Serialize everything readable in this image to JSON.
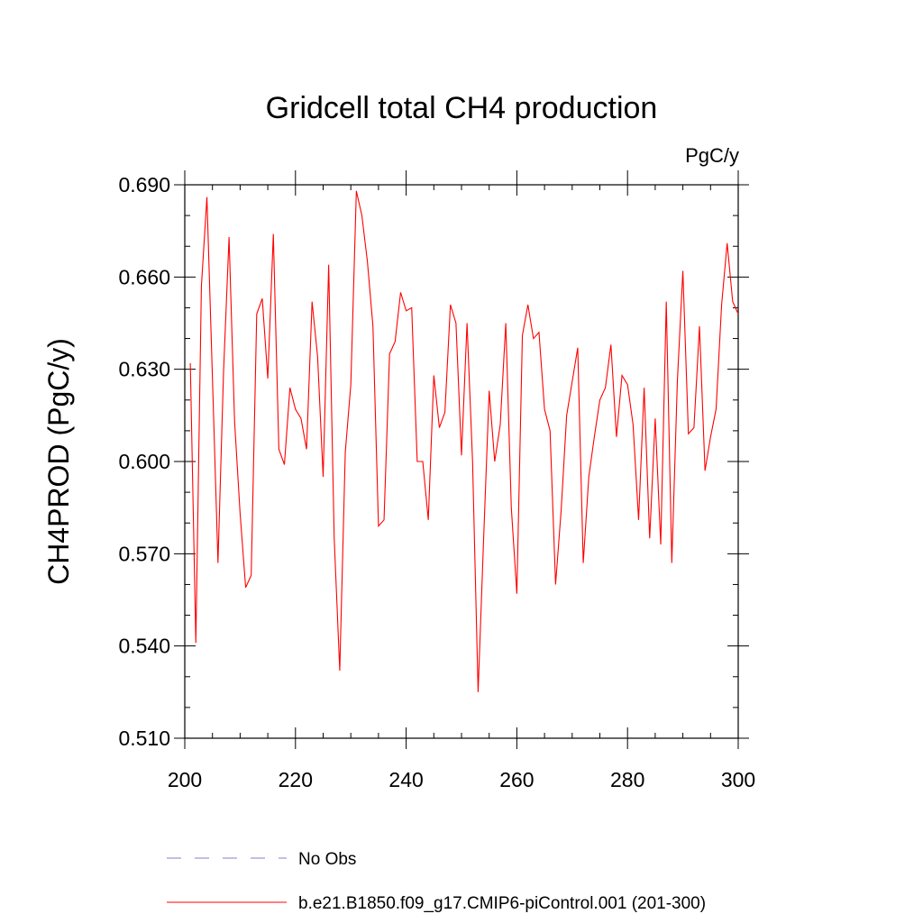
{
  "chart_data": {
    "type": "line",
    "title": "Gridcell total CH4 production",
    "units_label": "PgC/y",
    "xlabel": "",
    "ylabel": "CH4PROD  (PgC/y)",
    "xlim": [
      200,
      300
    ],
    "ylim": [
      0.51,
      0.69
    ],
    "xticks": [
      200,
      220,
      240,
      260,
      280,
      300
    ],
    "xtick_labels": [
      "200",
      "220",
      "240",
      "260",
      "280",
      "300"
    ],
    "yticks": [
      0.51,
      0.54,
      0.57,
      0.6,
      0.63,
      0.66,
      0.69
    ],
    "ytick_labels": [
      "0.510",
      "0.540",
      "0.570",
      "0.600",
      "0.630",
      "0.660",
      "0.690"
    ],
    "grid": false,
    "legend_position": "bottom",
    "series": [
      {
        "name": "b.e21.B1850.f09_g17.CMIP6-piControl.001 (201-300)",
        "color": "#ff0000",
        "style": "solid",
        "x": [
          201,
          202,
          203,
          204,
          205,
          206,
          207,
          208,
          209,
          210,
          211,
          212,
          213,
          214,
          215,
          216,
          217,
          218,
          219,
          220,
          221,
          222,
          223,
          224,
          225,
          226,
          227,
          228,
          229,
          230,
          231,
          232,
          233,
          234,
          235,
          236,
          237,
          238,
          239,
          240,
          241,
          242,
          243,
          244,
          245,
          246,
          247,
          248,
          249,
          250,
          251,
          252,
          253,
          254,
          255,
          256,
          257,
          258,
          259,
          260,
          261,
          262,
          263,
          264,
          265,
          266,
          267,
          268,
          269,
          270,
          271,
          272,
          273,
          274,
          275,
          276,
          277,
          278,
          279,
          280,
          281,
          282,
          283,
          284,
          285,
          286,
          287,
          288,
          289,
          290,
          291,
          292,
          293,
          294,
          295,
          296,
          297,
          298,
          299,
          300
        ],
        "values": [
          0.632,
          0.541,
          0.657,
          0.686,
          0.627,
          0.567,
          0.629,
          0.673,
          0.613,
          0.583,
          0.559,
          0.563,
          0.648,
          0.653,
          0.627,
          0.674,
          0.604,
          0.599,
          0.624,
          0.617,
          0.614,
          0.604,
          0.652,
          0.634,
          0.595,
          0.664,
          0.575,
          0.532,
          0.603,
          0.625,
          0.688,
          0.68,
          0.665,
          0.644,
          0.579,
          0.581,
          0.635,
          0.639,
          0.655,
          0.649,
          0.65,
          0.6,
          0.6,
          0.581,
          0.628,
          0.611,
          0.616,
          0.651,
          0.645,
          0.602,
          0.645,
          0.6,
          0.525,
          0.575,
          0.623,
          0.6,
          0.612,
          0.645,
          0.585,
          0.557,
          0.641,
          0.651,
          0.64,
          0.642,
          0.617,
          0.61,
          0.56,
          0.584,
          0.615,
          0.626,
          0.637,
          0.567,
          0.595,
          0.608,
          0.62,
          0.624,
          0.638,
          0.608,
          0.628,
          0.625,
          0.612,
          0.581,
          0.624,
          0.575,
          0.614,
          0.573,
          0.652,
          0.567,
          0.626,
          0.662,
          0.609,
          0.611,
          0.644,
          0.597,
          0.608,
          0.617,
          0.651,
          0.671,
          0.652,
          0.648
        ]
      },
      {
        "name": "No Obs",
        "color": "#8080c8",
        "style": "dashed",
        "x": [],
        "values": []
      }
    ]
  }
}
